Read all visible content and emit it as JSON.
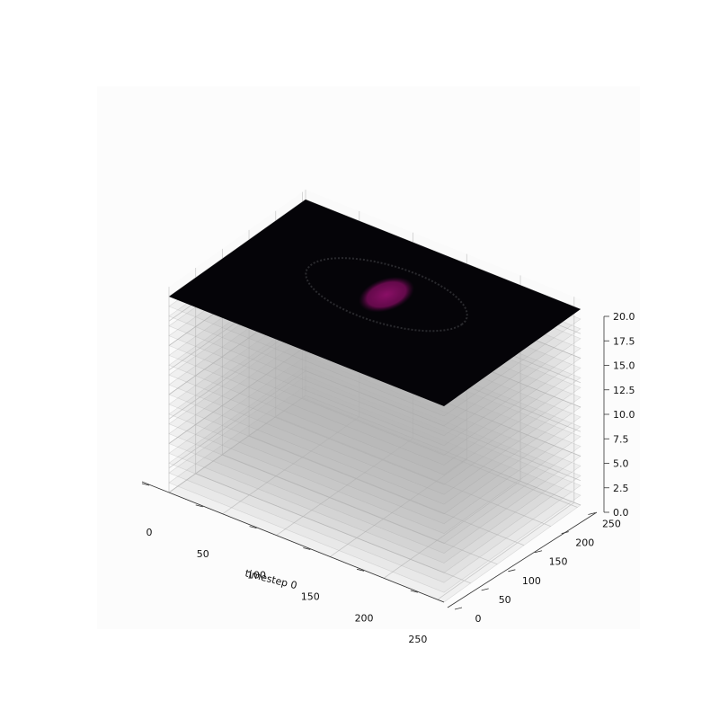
{
  "chart_data": {
    "type": "surface3d",
    "xlabel": "timestep 0",
    "ylabel": "",
    "zlabel": "",
    "x_ticks": [
      0,
      50,
      100,
      150,
      200,
      250
    ],
    "y_ticks": [
      0,
      50,
      100,
      150,
      200,
      250
    ],
    "z_ticks": [
      "0.0",
      "2.5",
      "5.0",
      "7.5",
      "10.0",
      "12.5",
      "15.0",
      "17.5",
      "20.0"
    ],
    "xlim": [
      0,
      256
    ],
    "ylim": [
      0,
      256
    ],
    "zlim": [
      0,
      20
    ],
    "layers": {
      "count": 21,
      "z_start": 0,
      "z_step": 1,
      "highlighted_z": 20
    },
    "highlight_spot": {
      "x": 128,
      "y": 150,
      "color": "#7a0a58"
    },
    "grid": true,
    "colors": {
      "top_layer": "#050408",
      "ghost_layer": "#b4b4b4",
      "grid_line": "#cccccc",
      "pane": "#fafafa"
    }
  }
}
